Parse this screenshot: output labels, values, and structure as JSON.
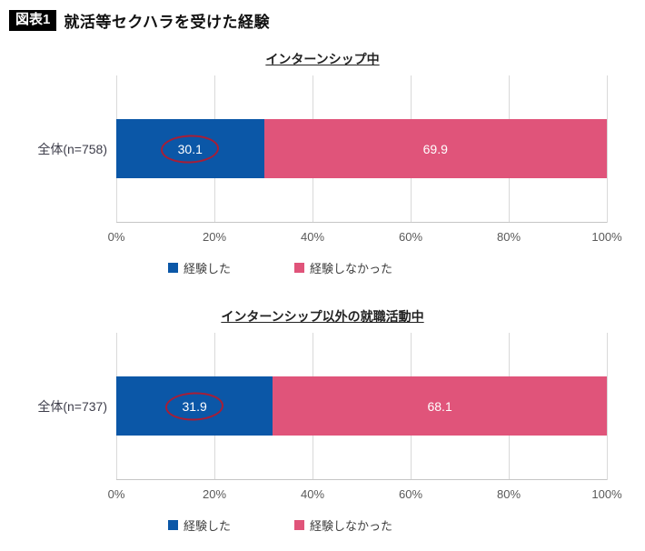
{
  "header": {
    "badge": "図表1",
    "title": "就活等セクハラを受けた経験"
  },
  "colors": {
    "experienced": "#0b57a7",
    "not_experienced": "#e0547a",
    "highlight_circle": "#a81e36",
    "gridline": "#d9d9d9",
    "tick_text": "#595959"
  },
  "chart_data": [
    {
      "type": "bar",
      "orientation": "horizontal",
      "stacked": true,
      "title": "インターンシップ中",
      "categories": [
        "全体(n=758)"
      ],
      "series": [
        {
          "name": "経験した",
          "values": [
            30.1
          ]
        },
        {
          "name": "経験しなかった",
          "values": [
            69.9
          ]
        }
      ],
      "xlim": [
        0,
        100
      ],
      "x_ticks": [
        "0%",
        "20%",
        "40%",
        "60%",
        "80%",
        "100%"
      ],
      "grid": true,
      "legend_position": "bottom",
      "annotations": [
        "value 30.1 circled in dark red"
      ]
    },
    {
      "type": "bar",
      "orientation": "horizontal",
      "stacked": true,
      "title": "インターンシップ以外の就職活動中",
      "categories": [
        "全体(n=737)"
      ],
      "series": [
        {
          "name": "経験した",
          "values": [
            31.9
          ]
        },
        {
          "name": "経験しなかった",
          "values": [
            68.1
          ]
        }
      ],
      "xlim": [
        0,
        100
      ],
      "x_ticks": [
        "0%",
        "20%",
        "40%",
        "60%",
        "80%",
        "100%"
      ],
      "grid": true,
      "legend_position": "bottom",
      "annotations": [
        "value 31.9 circled in dark red"
      ]
    }
  ]
}
